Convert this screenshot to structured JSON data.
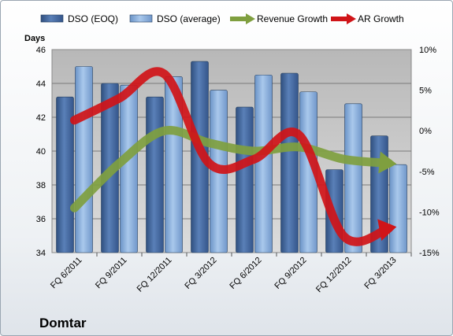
{
  "chart_data": {
    "type": "bar",
    "company": "Domtar",
    "categories": [
      "FQ 6/2011",
      "FQ 9/2011",
      "FQ 12/2011",
      "FQ 3/2012",
      "FQ 6/2012",
      "FQ 9/2012",
      "FQ 12/2012",
      "FQ 3/2013"
    ],
    "ylabel": "Days",
    "ylim": [
      34,
      46
    ],
    "yticks": [
      "34",
      "36",
      "38",
      "40",
      "42",
      "44",
      "46"
    ],
    "y2lim": [
      -15,
      10
    ],
    "y2ticks": [
      "-15%",
      "-10%",
      "-5%",
      "0%",
      "5%",
      "10%"
    ],
    "grid": true,
    "legend_position": "top",
    "series": [
      {
        "name": "DSO (EOQ)",
        "kind": "bar",
        "axis": "left",
        "color": "#4a6fa5",
        "values": [
          43.2,
          44.0,
          43.2,
          45.3,
          42.6,
          44.6,
          38.9,
          40.9
        ]
      },
      {
        "name": "DSO (average)",
        "kind": "bar",
        "axis": "left",
        "color": "#8eb4e3",
        "values": [
          45.0,
          43.9,
          44.4,
          43.6,
          44.5,
          43.5,
          42.8,
          39.2
        ]
      },
      {
        "name": "Revenue Growth",
        "kind": "arrow-line",
        "axis": "right",
        "color": "#7f9f3f",
        "values": [
          -9.5,
          -4.0,
          0.0,
          -1.5,
          -2.5,
          -2.0,
          -3.5,
          -4.0
        ]
      },
      {
        "name": "AR Growth",
        "kind": "arrow-line",
        "axis": "right",
        "color": "#d01418",
        "values": [
          1.3,
          4.0,
          7.0,
          -4.0,
          -3.5,
          -0.5,
          -13.0,
          -12.0
        ]
      }
    ]
  }
}
